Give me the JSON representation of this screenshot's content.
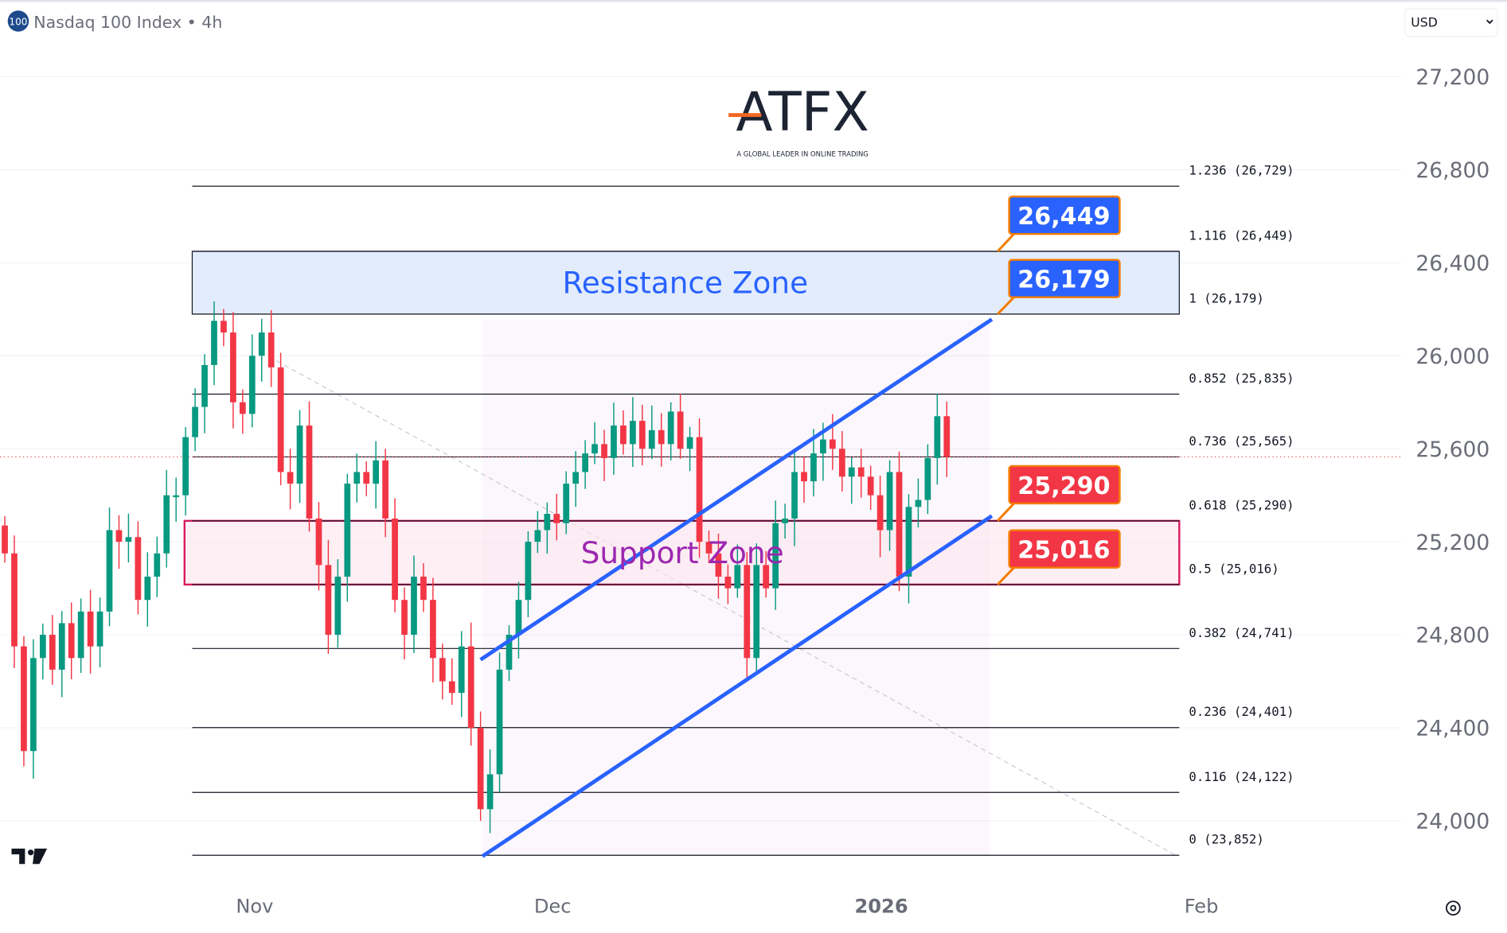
{
  "header": {
    "symbol_badge": "100",
    "title": "Nasdaq 100 Index • 4h",
    "currency": "USD"
  },
  "logo": {
    "name": "ATFX",
    "tagline": "A GLOBAL LEADER IN ONLINE TRADING"
  },
  "colors": {
    "up": "#089981",
    "down": "#f23645",
    "channel": "#2962ff",
    "resistance_text": "#2962ff",
    "support_text": "#9c27b0",
    "support_border": "#d81b60",
    "tag_blue": "#2962ff",
    "tag_red": "#f23645",
    "tag_border": "#f57c00"
  },
  "chart_data": {
    "type": "candlestick",
    "title": "Nasdaq 100 Index • 4h",
    "y_ticks": [
      "27,200",
      "26,800",
      "26,400",
      "26,000",
      "25,600",
      "25,200",
      "24,800",
      "24,400",
      "24,000"
    ],
    "y_tick_values": [
      27200,
      26800,
      26400,
      26000,
      25600,
      25200,
      24800,
      24400,
      24000
    ],
    "ylim": [
      23750,
      27350
    ],
    "x_ticks": [
      "Nov",
      "Dec",
      "2026",
      "Feb"
    ],
    "current_price": 25565,
    "closes": [
      25150,
      24750,
      24300,
      24700,
      24800,
      24650,
      24850,
      24700,
      24900,
      24750,
      24900,
      25250,
      25200,
      25220,
      24950,
      25050,
      25150,
      25400,
      25400,
      25650,
      25780,
      25960,
      26150,
      26100,
      25800,
      25750,
      26000,
      26100,
      25950,
      25500,
      25450,
      25700,
      25300,
      25100,
      24800,
      25050,
      25450,
      25500,
      25450,
      25550,
      25300,
      24950,
      24800,
      25050,
      24950,
      24700,
      24600,
      24550,
      24750,
      24400,
      24050,
      24200,
      24650,
      24800,
      24950,
      25200,
      25250,
      25320,
      25280,
      25450,
      25500,
      25580,
      25620,
      25560,
      25700,
      25620,
      25720,
      25600,
      25680,
      25620,
      25760,
      25600,
      25650,
      25200,
      25150,
      25050,
      25000,
      25100,
      24700,
      25100,
      25000,
      25280,
      25300,
      25500,
      25460,
      25580,
      25640,
      25600,
      25480,
      25520,
      25480,
      25400,
      25250,
      25500,
      25050,
      25350,
      25380,
      25560,
      25740,
      25565
    ],
    "fib_levels": [
      {
        "ratio": 1.236,
        "price": 26729,
        "label": "1.236 (26,729)"
      },
      {
        "ratio": 1.116,
        "price": 26449,
        "label": "1.116 (26,449)"
      },
      {
        "ratio": 1,
        "price": 26179,
        "label": "1 (26,179)"
      },
      {
        "ratio": 0.852,
        "price": 25835,
        "label": "0.852 (25,835)"
      },
      {
        "ratio": 0.736,
        "price": 25565,
        "label": "0.736 (25,565)"
      },
      {
        "ratio": 0.618,
        "price": 25290,
        "label": "0.618 (25,290)"
      },
      {
        "ratio": 0.5,
        "price": 25016,
        "label": "0.5 (25,016)"
      },
      {
        "ratio": 0.382,
        "price": 24741,
        "label": "0.382 (24,741)"
      },
      {
        "ratio": 0.236,
        "price": 24401,
        "label": "0.236 (24,401)"
      },
      {
        "ratio": 0.116,
        "price": 24122,
        "label": "0.116 (24,122)"
      },
      {
        "ratio": 0,
        "price": 23852,
        "label": "0 (23,852)"
      }
    ],
    "zones": {
      "resistance": {
        "label": "Resistance Zone",
        "low": 26179,
        "high": 26449
      },
      "support": {
        "label": "Support Zone",
        "low": 25016,
        "high": 25290
      }
    },
    "price_tags": [
      {
        "label": "26,449",
        "price": 26449,
        "color": "blue"
      },
      {
        "label": "26,179",
        "price": 26179,
        "color": "blue"
      },
      {
        "label": "25,290",
        "price": 25290,
        "color": "red"
      },
      {
        "label": "25,016",
        "price": 25016,
        "color": "red"
      }
    ]
  }
}
